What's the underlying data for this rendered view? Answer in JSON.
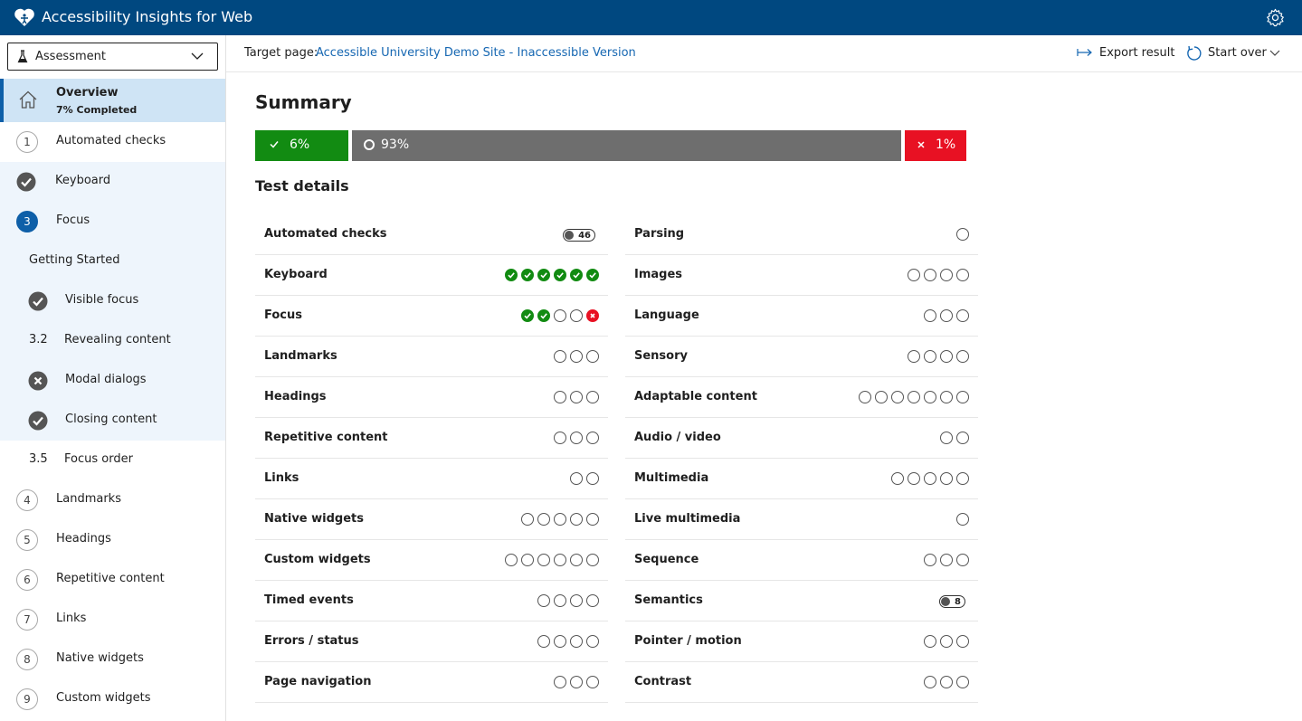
{
  "app": {
    "title": "Accessibility Insights for Web"
  },
  "selector": {
    "label": "Assessment"
  },
  "overview": {
    "title": "Overview",
    "subtitle": "7% Completed"
  },
  "nav": [
    {
      "label": "Automated checks",
      "marker": "1",
      "status": "number"
    },
    {
      "label": "Keyboard",
      "marker": "",
      "status": "pass"
    },
    {
      "label": "Focus",
      "marker": "3",
      "status": "active"
    },
    {
      "label": "Getting Started",
      "marker": "",
      "status": "plain"
    },
    {
      "label": "Visible focus",
      "marker": "",
      "status": "pass"
    },
    {
      "label": "Revealing content",
      "marker": "3.2",
      "status": "subnumber"
    },
    {
      "label": "Modal dialogs",
      "marker": "",
      "status": "fail"
    },
    {
      "label": "Closing content",
      "marker": "",
      "status": "pass"
    },
    {
      "label": "Focus order",
      "marker": "3.5",
      "status": "subnumber"
    },
    {
      "label": "Landmarks",
      "marker": "4",
      "status": "number"
    },
    {
      "label": "Headings",
      "marker": "5",
      "status": "number"
    },
    {
      "label": "Repetitive content",
      "marker": "6",
      "status": "number"
    },
    {
      "label": "Links",
      "marker": "7",
      "status": "number"
    },
    {
      "label": "Native widgets",
      "marker": "8",
      "status": "number"
    },
    {
      "label": "Custom widgets",
      "marker": "9",
      "status": "number"
    }
  ],
  "target": {
    "label": "Target page:",
    "link": "Accessible University Demo Site - Inaccessible Version",
    "export_label": "Export result",
    "start_over_label": "Start over"
  },
  "summary": {
    "title": "Summary",
    "pass_pct": "6%",
    "incomplete_pct": "93%",
    "fail_pct": "1%",
    "pass_fraction": 0.06,
    "incomplete_fraction": 0.93,
    "fail_fraction": 0.01
  },
  "details": {
    "title": "Test details",
    "left": [
      {
        "name": "Automated checks",
        "count": "46"
      },
      {
        "name": "Keyboard",
        "statuses": [
          "pass",
          "pass",
          "pass",
          "pass",
          "pass",
          "pass"
        ]
      },
      {
        "name": "Focus",
        "statuses": [
          "pass",
          "pass",
          "none",
          "none",
          "fail"
        ]
      },
      {
        "name": "Landmarks",
        "statuses": [
          "none",
          "none",
          "none"
        ]
      },
      {
        "name": "Headings",
        "statuses": [
          "none",
          "none",
          "none"
        ]
      },
      {
        "name": "Repetitive content",
        "statuses": [
          "none",
          "none",
          "none"
        ]
      },
      {
        "name": "Links",
        "statuses": [
          "none",
          "none"
        ]
      },
      {
        "name": "Native widgets",
        "statuses": [
          "none",
          "none",
          "none",
          "none",
          "none"
        ]
      },
      {
        "name": "Custom widgets",
        "statuses": [
          "none",
          "none",
          "none",
          "none",
          "none",
          "none"
        ]
      },
      {
        "name": "Timed events",
        "statuses": [
          "none",
          "none",
          "none",
          "none"
        ]
      },
      {
        "name": "Errors / status",
        "statuses": [
          "none",
          "none",
          "none",
          "none"
        ]
      },
      {
        "name": "Page navigation",
        "statuses": [
          "none",
          "none",
          "none"
        ]
      }
    ],
    "right": [
      {
        "name": "Parsing",
        "statuses": [
          "none"
        ]
      },
      {
        "name": "Images",
        "statuses": [
          "none",
          "none",
          "none",
          "none"
        ]
      },
      {
        "name": "Language",
        "statuses": [
          "none",
          "none",
          "none"
        ]
      },
      {
        "name": "Sensory",
        "statuses": [
          "none",
          "none",
          "none",
          "none"
        ]
      },
      {
        "name": "Adaptable content",
        "statuses": [
          "none",
          "none",
          "none",
          "none",
          "none",
          "none",
          "none"
        ]
      },
      {
        "name": "Audio / video",
        "statuses": [
          "none",
          "none"
        ]
      },
      {
        "name": "Multimedia",
        "statuses": [
          "none",
          "none",
          "none",
          "none",
          "none"
        ]
      },
      {
        "name": "Live multimedia",
        "statuses": [
          "none"
        ]
      },
      {
        "name": "Sequence",
        "statuses": [
          "none",
          "none",
          "none"
        ]
      },
      {
        "name": "Semantics",
        "count": "8"
      },
      {
        "name": "Pointer / motion",
        "statuses": [
          "none",
          "none",
          "none"
        ]
      },
      {
        "name": "Contrast",
        "statuses": [
          "none",
          "none",
          "none"
        ]
      }
    ]
  },
  "colors": {
    "header": "#004880",
    "pass": "#128b12",
    "incomplete": "#6e6e6e",
    "fail": "#e81123",
    "accent": "#0e5fa8",
    "link": "#1667b2"
  }
}
